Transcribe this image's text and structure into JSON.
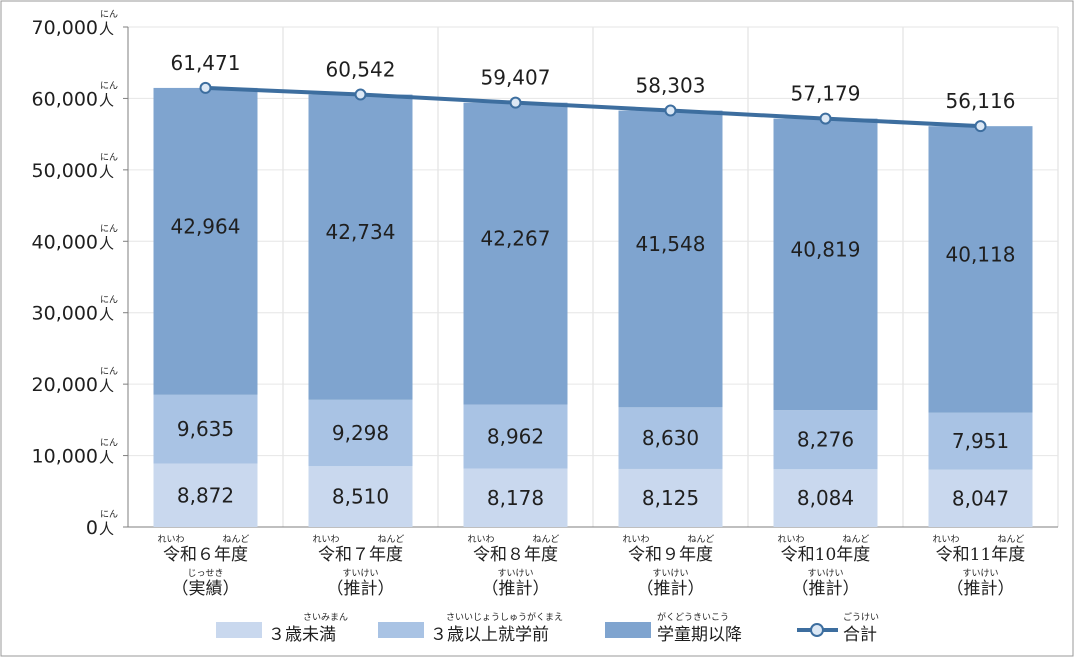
{
  "chart_data": {
    "type": "bar",
    "stacked": true,
    "categories": [
      {
        "label": "令和６年度",
        "ruby_left": "れいわ",
        "ruby_right": "ねんど",
        "sub": "（実績）",
        "sub_ruby": "じっせき"
      },
      {
        "label": "令和７年度",
        "ruby_left": "れいわ",
        "ruby_right": "ねんど",
        "sub": "（推計）",
        "sub_ruby": "すいけい"
      },
      {
        "label": "令和８年度",
        "ruby_left": "れいわ",
        "ruby_right": "ねんど",
        "sub": "（推計）",
        "sub_ruby": "すいけい"
      },
      {
        "label": "令和９年度",
        "ruby_left": "れいわ",
        "ruby_right": "ねんど",
        "sub": "（推計）",
        "sub_ruby": "すいけい"
      },
      {
        "label": "令和10年度",
        "ruby_left": "れいわ",
        "ruby_right": "ねんど",
        "sub": "（推計）",
        "sub_ruby": "すいけい"
      },
      {
        "label": "令和11年度",
        "ruby_left": "れいわ",
        "ruby_right": "ねんど",
        "sub": "（推計）",
        "sub_ruby": "すいけい"
      }
    ],
    "series": [
      {
        "name": "３歳未満",
        "ruby": "さいみまん",
        "color": "#c9d8ee",
        "values": [
          8872,
          8510,
          8178,
          8125,
          8084,
          8047
        ],
        "labels": [
          "8,872",
          "8,510",
          "8,178",
          "8,125",
          "8,084",
          "8,047"
        ]
      },
      {
        "name": "３歳以上就学前",
        "ruby": "さいいじょうしゅうがくまえ",
        "color": "#a9c3e4",
        "values": [
          9635,
          9298,
          8962,
          8630,
          8276,
          7951
        ],
        "labels": [
          "9,635",
          "9,298",
          "8,962",
          "8,630",
          "8,276",
          "7,951"
        ]
      },
      {
        "name": "学童期以降",
        "ruby": "がくどうきいこう",
        "color": "#7fa4cf",
        "values": [
          42964,
          42734,
          42267,
          41548,
          40819,
          40118
        ],
        "labels": [
          "42,964",
          "42,734",
          "42,267",
          "41,548",
          "40,819",
          "40,118"
        ]
      }
    ],
    "total": {
      "name": "合計",
      "ruby": "ごうけい",
      "color": "#3d6e9f",
      "values": [
        61471,
        60542,
        59407,
        58303,
        57179,
        56116
      ],
      "labels": [
        "61,471",
        "60,542",
        "59,407",
        "58,303",
        "57,179",
        "56,116"
      ]
    },
    "y_axis": {
      "ticks": [
        "0",
        "10,000",
        "20,000",
        "30,000",
        "40,000",
        "50,000",
        "60,000",
        "70,000"
      ],
      "unit": "人",
      "unit_ruby": "にん"
    },
    "ylim": [
      0,
      70000
    ],
    "grid": true,
    "legend_position": "bottom"
  }
}
